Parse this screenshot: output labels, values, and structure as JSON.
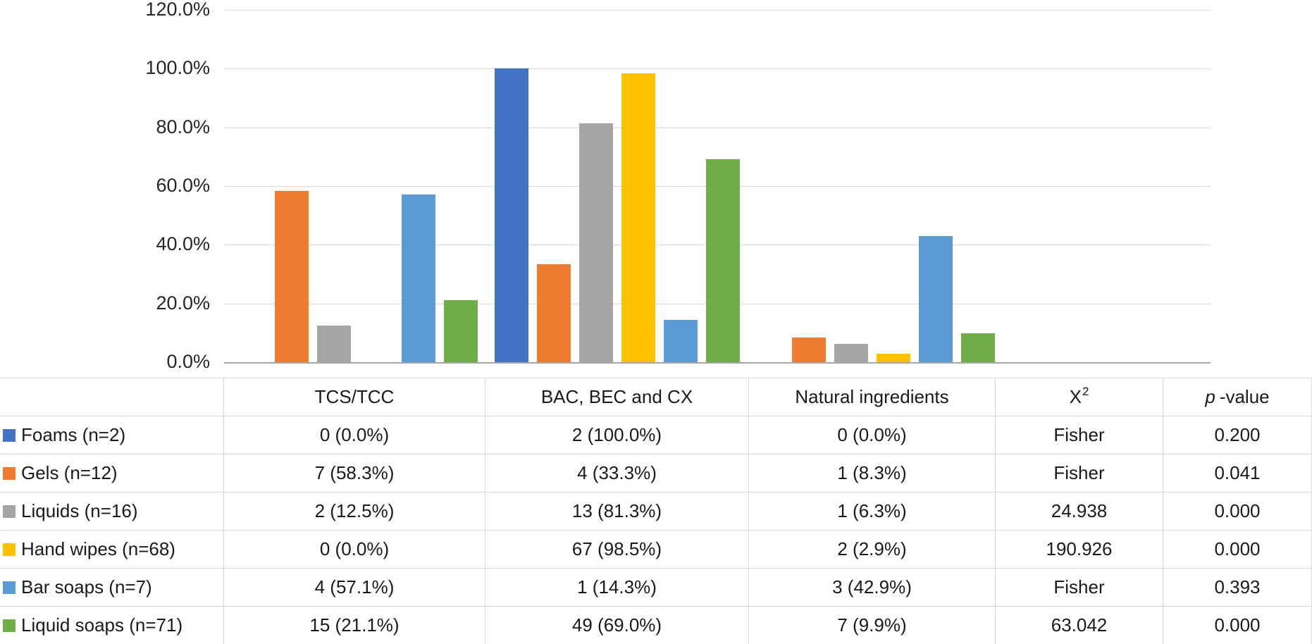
{
  "chart_data": {
    "type": "bar",
    "title": "",
    "xlabel": "",
    "ylabel": "",
    "categories": [
      "TCS/TCC",
      "BAC, BEC and CX",
      "Natural ingredients"
    ],
    "series": [
      {
        "name": "Foams (n=2)",
        "color": "#4472C4",
        "values": [
          0.0,
          100.0,
          0.0
        ]
      },
      {
        "name": "Gels (n=12)",
        "color": "#ED7D31",
        "values": [
          58.3,
          33.3,
          8.3
        ]
      },
      {
        "name": "Liquids (n=16)",
        "color": "#A5A5A5",
        "values": [
          12.5,
          81.3,
          6.3
        ]
      },
      {
        "name": "Hand wipes (n=68)",
        "color": "#FFC000",
        "values": [
          0.0,
          98.5,
          2.9
        ]
      },
      {
        "name": "Bar soaps (n=7)",
        "color": "#5B9BD5",
        "values": [
          57.1,
          14.3,
          42.9
        ]
      },
      {
        "name": "Liquid soaps (n=71)",
        "color": "#70AD47",
        "values": [
          21.1,
          69.0,
          9.9
        ]
      }
    ],
    "ylim": [
      0,
      120
    ],
    "ytick_step": 20,
    "ytick_labels_top_to_bottom": [
      "120.0%",
      "100.0%",
      "80.0%",
      "60.0%",
      "40.0%",
      "20.0%",
      "0.0%"
    ],
    "grid": true,
    "legend_position": "table-row-labels",
    "gridline_color": "#d9d9d9",
    "axis_line_color": "#a6a6a6"
  },
  "table": {
    "header": {
      "row_label": "",
      "col_tcs": "TCS/TCC",
      "col_bac": "BAC, BEC and CX",
      "col_natural": "Natural ingredients",
      "col_chi_base": "X",
      "col_chi_sup": "2",
      "col_p_italic": "p",
      "col_p_rest": "-value"
    },
    "rows": [
      {
        "label": "Foams (n=2)",
        "swatch_color": "#4472C4",
        "tcs": "0 (0.0%)",
        "bac": "2 (100.0%)",
        "natural": "0 (0.0%)",
        "chi": "Fisher",
        "p": "0.200"
      },
      {
        "label": "Gels (n=12)",
        "swatch_color": "#ED7D31",
        "tcs": "7 (58.3%)",
        "bac": "4 (33.3%)",
        "natural": "1 (8.3%)",
        "chi": "Fisher",
        "p": "0.041"
      },
      {
        "label": "Liquids (n=16)",
        "swatch_color": "#A5A5A5",
        "tcs": "2 (12.5%)",
        "bac": "13 (81.3%)",
        "natural": "1 (6.3%)",
        "chi": "24.938",
        "p": "0.000"
      },
      {
        "label": "Hand wipes (n=68)",
        "swatch_color": "#FFC000",
        "tcs": "0 (0.0%)",
        "bac": "67 (98.5%)",
        "natural": "2 (2.9%)",
        "chi": "190.926",
        "p": "0.000"
      },
      {
        "label": "Bar soaps (n=7)",
        "swatch_color": "#5B9BD5",
        "tcs": "4 (57.1%)",
        "bac": "1 (14.3%)",
        "natural": "3 (42.9%)",
        "chi": "Fisher",
        "p": "0.393"
      },
      {
        "label": "Liquid soaps (n=71)",
        "swatch_color": "#70AD47",
        "tcs": "15 (21.1%)",
        "bac": "49 (69.0%)",
        "natural": "7 (9.9%)",
        "chi": "63.042",
        "p": "0.000"
      }
    ]
  }
}
